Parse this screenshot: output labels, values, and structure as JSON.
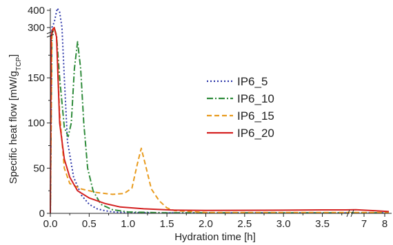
{
  "chart_data": {
    "type": "line",
    "xlabel": "Hydration time [h]",
    "ylabel": "Specific heat flow [mW/g",
    "ylabel_sub": "TCP",
    "ylabel_close": "]",
    "x_ticks": [
      "0.0",
      "0.5",
      "1.0",
      "1.5",
      "2.0",
      "2.5",
      "3.0",
      "3.5",
      "7",
      "8"
    ],
    "y_ticks": [
      "0",
      "50",
      "100",
      "150",
      "300",
      "400"
    ],
    "x_break": [
      3.85,
      6.5
    ],
    "y_break": [
      195,
      290
    ],
    "legend_position": "center-right",
    "grid": false,
    "series": [
      {
        "name": "IP6_5",
        "color": "#2b35a8",
        "dash": "dot",
        "points": [
          [
            0,
            0
          ],
          [
            0.02,
            300
          ],
          [
            0.05,
            330
          ],
          [
            0.09,
            412
          ],
          [
            0.12,
            390
          ],
          [
            0.15,
            300
          ],
          [
            0.18,
            150
          ],
          [
            0.22,
            80
          ],
          [
            0.3,
            40
          ],
          [
            0.4,
            20
          ],
          [
            0.5,
            10
          ],
          [
            0.6,
            5
          ],
          [
            0.7,
            3
          ],
          [
            0.8,
            1.5
          ],
          [
            1.0,
            0.8
          ],
          [
            1.5,
            0.5
          ],
          [
            3.5,
            0.5
          ],
          [
            3.8,
            0.5
          ],
          [
            6.6,
            0.5
          ],
          [
            8.2,
            0.5
          ]
        ]
      },
      {
        "name": "IP6_10",
        "color": "#2e8b3a",
        "dash": "dashdot",
        "points": [
          [
            0,
            0
          ],
          [
            0.02,
            280
          ],
          [
            0.05,
            300
          ],
          [
            0.08,
            250
          ],
          [
            0.12,
            150
          ],
          [
            0.18,
            95
          ],
          [
            0.23,
            85
          ],
          [
            0.27,
            100
          ],
          [
            0.31,
            160
          ],
          [
            0.35,
            190
          ],
          [
            0.39,
            160
          ],
          [
            0.43,
            100
          ],
          [
            0.48,
            50
          ],
          [
            0.55,
            25
          ],
          [
            0.65,
            10
          ],
          [
            0.8,
            4
          ],
          [
            1.0,
            1.5
          ],
          [
            1.5,
            0.5
          ],
          [
            3.5,
            0.5
          ],
          [
            3.8,
            0.5
          ],
          [
            6.6,
            0.5
          ],
          [
            8.2,
            0.5
          ]
        ]
      },
      {
        "name": "IP6_15",
        "color": "#e89a1c",
        "dash": "dash",
        "points": [
          [
            0,
            0
          ],
          [
            0.02,
            285
          ],
          [
            0.05,
            300
          ],
          [
            0.08,
            220
          ],
          [
            0.12,
            110
          ],
          [
            0.18,
            50
          ],
          [
            0.25,
            33
          ],
          [
            0.4,
            27
          ],
          [
            0.6,
            23
          ],
          [
            0.8,
            21
          ],
          [
            0.95,
            22
          ],
          [
            1.05,
            28
          ],
          [
            1.12,
            55
          ],
          [
            1.17,
            72
          ],
          [
            1.22,
            55
          ],
          [
            1.3,
            27
          ],
          [
            1.4,
            14
          ],
          [
            1.5,
            6
          ],
          [
            1.6,
            3
          ],
          [
            2.0,
            1
          ],
          [
            3.5,
            1
          ],
          [
            3.8,
            1
          ],
          [
            6.6,
            1
          ],
          [
            8.2,
            1
          ]
        ]
      },
      {
        "name": "IP6_20",
        "color": "#d42020",
        "dash": "solid",
        "points": [
          [
            0,
            0
          ],
          [
            0.01,
            200
          ],
          [
            0.03,
            290
          ],
          [
            0.05,
            300
          ],
          [
            0.08,
            200
          ],
          [
            0.12,
            100
          ],
          [
            0.18,
            60
          ],
          [
            0.25,
            40
          ],
          [
            0.35,
            25
          ],
          [
            0.5,
            17
          ],
          [
            0.7,
            11
          ],
          [
            0.9,
            7
          ],
          [
            1.2,
            5
          ],
          [
            1.6,
            3.5
          ],
          [
            2.0,
            3.2
          ],
          [
            3.0,
            3.5
          ],
          [
            3.5,
            3.8
          ],
          [
            3.8,
            3.8
          ],
          [
            6.6,
            4
          ],
          [
            7.0,
            3.5
          ],
          [
            7.5,
            3
          ],
          [
            8.2,
            2
          ]
        ]
      }
    ]
  }
}
